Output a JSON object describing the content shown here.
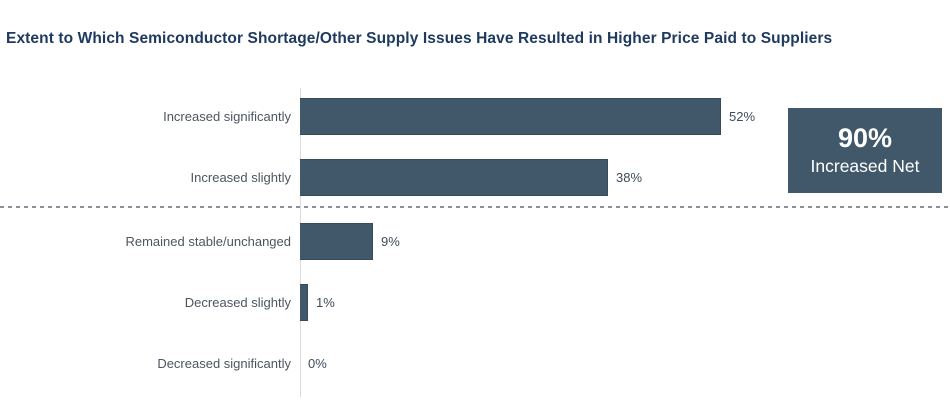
{
  "chart_data": {
    "type": "bar",
    "orientation": "horizontal",
    "title": "Extent to Which Semiconductor Shortage/Other Supply Issues Have Resulted in Higher Price Paid to Suppliers",
    "categories": [
      "Increased significantly",
      "Increased slightly",
      "Remained stable/unchanged",
      "Decreased slightly",
      "Decreased significantly"
    ],
    "values": [
      52,
      38,
      9,
      1,
      0
    ],
    "value_labels": [
      "52%",
      "38%",
      "9%",
      "1%",
      "0%"
    ],
    "xlim": [
      0,
      60
    ],
    "grid": false,
    "legend": "none",
    "divider_after_index": 1,
    "annotation": {
      "value": "90%",
      "label": "Increased Net"
    }
  },
  "colors": {
    "title": "#1f3a60",
    "bar": "#41586a",
    "category_label": "#4d5560",
    "value_label": "#3e4c59",
    "axis_line": "#d9d9d9",
    "divider": "#8a9099",
    "net_box_background": "#41586a",
    "net_box_text": "#ffffff"
  }
}
